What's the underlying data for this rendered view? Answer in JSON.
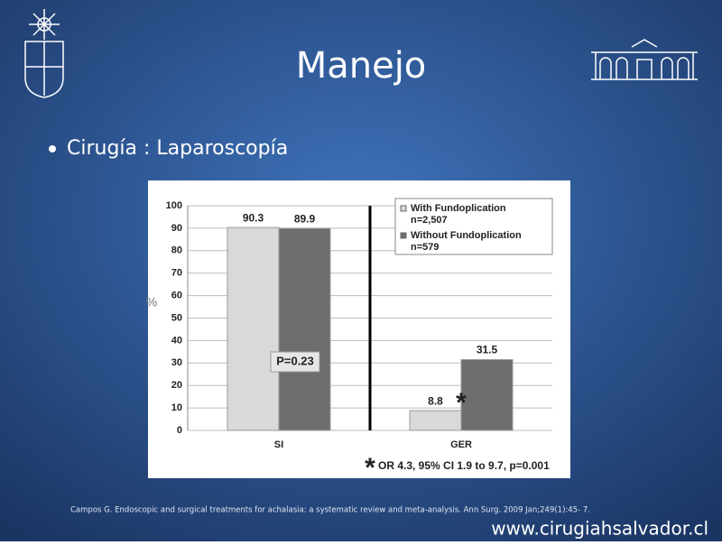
{
  "title": "Manejo",
  "bullet": "Cirugía : Laparoscopía",
  "citation": "Campos G. Endoscopic and surgical treatments for achalasia: a systematic review and meta-analysis. Ann Surg. 2009 Jan;249(1):45- 7.",
  "footer": "www.cirugiahsalvador.cl",
  "chart_data": {
    "type": "bar",
    "categories": [
      "SI",
      "GER"
    ],
    "series": [
      {
        "name": "With Fundoplication",
        "sample": "n=2,507",
        "color": "#d9d9d9",
        "values": [
          90.3,
          8.8
        ]
      },
      {
        "name": "Without Fundoplication",
        "sample": "n=579",
        "color": "#6e6e6e",
        "values": [
          89.9,
          31.5
        ]
      }
    ],
    "ylabel": "%",
    "ylim": [
      0,
      100
    ],
    "yticks": [
      0,
      10,
      20,
      30,
      40,
      50,
      60,
      70,
      80,
      90,
      100
    ],
    "grid": true,
    "legend": "top-right",
    "annotations": [
      "P=0.23",
      "*",
      "*",
      "OR 4.3, 95% CI 1.9 to 9.7, p=0.001"
    ]
  }
}
